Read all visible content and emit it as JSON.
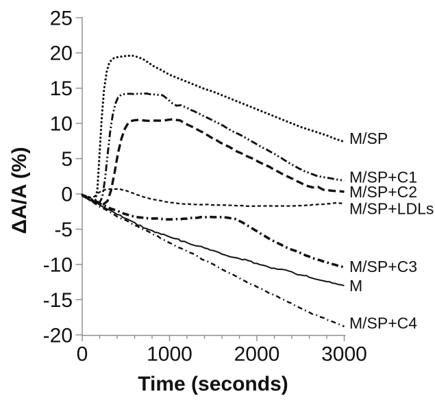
{
  "colors": {
    "line": "#111111",
    "axis": "#8c8c8c",
    "text": "#111111",
    "background": "#ffffff"
  },
  "chart_data": {
    "type": "line",
    "title": "",
    "xlabel": "Time (seconds)",
    "ylabel": "ΔA/A (%)",
    "xlim": [
      0,
      3000
    ],
    "ylim": [
      -20,
      25
    ],
    "x_ticks_major": [
      0,
      1000,
      2000,
      3000
    ],
    "x_minor_step": 200,
    "y_ticks": [
      25,
      20,
      15,
      10,
      5,
      0,
      -5,
      -10,
      -15,
      -20
    ],
    "grid": false,
    "legend_position": "labels-at-line-ends-right",
    "series": [
      {
        "name": "M/SP",
        "line_style": "dotted",
        "jitter": 0,
        "label_dy": 3,
        "points": [
          [
            0,
            -0.1
          ],
          [
            40,
            -0.3
          ],
          [
            80,
            -0.6
          ],
          [
            120,
            -0.9
          ],
          [
            150,
            -1.0
          ],
          [
            175,
            0.8
          ],
          [
            200,
            6.0
          ],
          [
            225,
            11.0
          ],
          [
            250,
            14.8
          ],
          [
            280,
            17.3
          ],
          [
            310,
            18.6
          ],
          [
            350,
            19.2
          ],
          [
            400,
            19.4
          ],
          [
            460,
            19.5
          ],
          [
            520,
            19.6
          ],
          [
            580,
            19.6
          ],
          [
            640,
            19.4
          ],
          [
            700,
            19.1
          ],
          [
            760,
            18.6
          ],
          [
            820,
            18.1
          ],
          [
            900,
            17.6
          ],
          [
            1000,
            16.9
          ],
          [
            1100,
            16.4
          ],
          [
            1200,
            15.9
          ],
          [
            1300,
            15.4
          ],
          [
            1400,
            14.9
          ],
          [
            1500,
            14.5
          ],
          [
            1600,
            14.0
          ],
          [
            1700,
            13.5
          ],
          [
            1800,
            13.0
          ],
          [
            1900,
            12.5
          ],
          [
            2000,
            12.0
          ],
          [
            2100,
            11.5
          ],
          [
            2200,
            11.0
          ],
          [
            2300,
            10.5
          ],
          [
            2400,
            10.0
          ],
          [
            2500,
            9.5
          ],
          [
            2600,
            9.1
          ],
          [
            2700,
            8.7
          ],
          [
            2800,
            8.3
          ],
          [
            2900,
            7.8
          ],
          [
            3000,
            7.4
          ]
        ]
      },
      {
        "name": "M/SP+C1",
        "line_style": "dash-dot-dot",
        "jitter": 0.5,
        "label_dy": 3,
        "points": [
          [
            0,
            -0.1
          ],
          [
            50,
            -0.4
          ],
          [
            100,
            -0.7
          ],
          [
            150,
            -1.0
          ],
          [
            200,
            -1.2
          ],
          [
            230,
            -0.5
          ],
          [
            260,
            2.0
          ],
          [
            290,
            5.5
          ],
          [
            320,
            8.8
          ],
          [
            350,
            11.2
          ],
          [
            380,
            12.8
          ],
          [
            410,
            13.7
          ],
          [
            450,
            14.1
          ],
          [
            500,
            14.2
          ],
          [
            560,
            14.2
          ],
          [
            620,
            14.2
          ],
          [
            680,
            14.2
          ],
          [
            740,
            14.2
          ],
          [
            800,
            14.1
          ],
          [
            860,
            14.1
          ],
          [
            920,
            14.0
          ],
          [
            980,
            13.4
          ],
          [
            1030,
            12.9
          ],
          [
            1080,
            12.5
          ],
          [
            1130,
            12.6
          ],
          [
            1180,
            12.3
          ],
          [
            1250,
            11.9
          ],
          [
            1350,
            11.3
          ],
          [
            1450,
            10.7
          ],
          [
            1550,
            10.1
          ],
          [
            1650,
            9.4
          ],
          [
            1750,
            8.7
          ],
          [
            1850,
            8.1
          ],
          [
            1950,
            7.4
          ],
          [
            2050,
            6.7
          ],
          [
            2150,
            6.0
          ],
          [
            2250,
            5.3
          ],
          [
            2350,
            4.5
          ],
          [
            2450,
            3.8
          ],
          [
            2550,
            3.2
          ],
          [
            2650,
            2.7
          ],
          [
            2750,
            2.4
          ],
          [
            2850,
            2.2
          ],
          [
            2925,
            2.0
          ],
          [
            3000,
            1.9
          ]
        ]
      },
      {
        "name": "M/SP+C2",
        "line_style": "dashed",
        "jitter": 0.4,
        "label_dy": 8,
        "points": [
          [
            0,
            -0.2
          ],
          [
            60,
            -0.6
          ],
          [
            120,
            -1.0
          ],
          [
            180,
            -1.3
          ],
          [
            240,
            -1.5
          ],
          [
            290,
            -1.0
          ],
          [
            330,
            0.5
          ],
          [
            370,
            3.0
          ],
          [
            410,
            5.8
          ],
          [
            450,
            7.9
          ],
          [
            490,
            9.3
          ],
          [
            530,
            10.1
          ],
          [
            570,
            10.4
          ],
          [
            630,
            10.5
          ],
          [
            700,
            10.4
          ],
          [
            770,
            10.4
          ],
          [
            840,
            10.4
          ],
          [
            910,
            10.4
          ],
          [
            980,
            10.5
          ],
          [
            1050,
            10.6
          ],
          [
            1120,
            10.4
          ],
          [
            1180,
            10.0
          ],
          [
            1280,
            9.4
          ],
          [
            1380,
            8.7
          ],
          [
            1480,
            8.0
          ],
          [
            1580,
            7.3
          ],
          [
            1680,
            6.7
          ],
          [
            1780,
            6.0
          ],
          [
            1880,
            5.4
          ],
          [
            1980,
            4.8
          ],
          [
            2080,
            4.2
          ],
          [
            2180,
            3.6
          ],
          [
            2280,
            2.9
          ],
          [
            2380,
            2.3
          ],
          [
            2480,
            1.7
          ],
          [
            2560,
            1.2
          ],
          [
            2640,
            0.9
          ],
          [
            2700,
            1.0
          ],
          [
            2760,
            0.6
          ],
          [
            2820,
            0.5
          ],
          [
            2900,
            0.4
          ],
          [
            3000,
            0.3
          ]
        ]
      },
      {
        "name": "M/SP+LDLs",
        "line_style": "short-dash",
        "jitter": 0.5,
        "label_dy": 16,
        "points": [
          [
            0,
            -0.1
          ],
          [
            50,
            -0.3
          ],
          [
            100,
            -0.5
          ],
          [
            140,
            -0.4
          ],
          [
            180,
            0.1
          ],
          [
            230,
            0.5
          ],
          [
            290,
            0.7
          ],
          [
            350,
            0.7
          ],
          [
            420,
            0.7
          ],
          [
            490,
            0.5
          ],
          [
            560,
            0.2
          ],
          [
            630,
            -0.1
          ],
          [
            700,
            -0.4
          ],
          [
            780,
            -0.7
          ],
          [
            860,
            -0.9
          ],
          [
            950,
            -1.1
          ],
          [
            1050,
            -1.3
          ],
          [
            1150,
            -1.4
          ],
          [
            1250,
            -1.5
          ],
          [
            1400,
            -1.5
          ],
          [
            1550,
            -1.6
          ],
          [
            1700,
            -1.6
          ],
          [
            1850,
            -1.7
          ],
          [
            2000,
            -1.7
          ],
          [
            2150,
            -1.7
          ],
          [
            2300,
            -1.7
          ],
          [
            2450,
            -1.7
          ],
          [
            2600,
            -1.6
          ],
          [
            2700,
            -1.5
          ],
          [
            2800,
            -1.4
          ],
          [
            2900,
            -1.3
          ],
          [
            3000,
            -1.3
          ]
        ]
      },
      {
        "name": "M/SP+C3",
        "line_style": "thick-dash-dot",
        "jitter": 0.5,
        "label_dy": 7,
        "points": [
          [
            0,
            -0.2
          ],
          [
            80,
            -0.7
          ],
          [
            160,
            -1.1
          ],
          [
            240,
            -1.6
          ],
          [
            320,
            -2.0
          ],
          [
            400,
            -2.4
          ],
          [
            480,
            -2.8
          ],
          [
            560,
            -3.1
          ],
          [
            640,
            -3.3
          ],
          [
            720,
            -3.4
          ],
          [
            800,
            -3.5
          ],
          [
            880,
            -3.5
          ],
          [
            960,
            -3.6
          ],
          [
            1040,
            -3.6
          ],
          [
            1120,
            -3.6
          ],
          [
            1200,
            -3.5
          ],
          [
            1280,
            -3.4
          ],
          [
            1360,
            -3.3
          ],
          [
            1440,
            -3.3
          ],
          [
            1520,
            -3.3
          ],
          [
            1600,
            -3.3
          ],
          [
            1680,
            -3.4
          ],
          [
            1760,
            -3.6
          ],
          [
            1840,
            -4.1
          ],
          [
            1920,
            -4.7
          ],
          [
            2000,
            -5.3
          ],
          [
            2080,
            -5.9
          ],
          [
            2160,
            -6.5
          ],
          [
            2240,
            -7.0
          ],
          [
            2320,
            -7.5
          ],
          [
            2400,
            -7.9
          ],
          [
            2480,
            -8.3
          ],
          [
            2560,
            -8.7
          ],
          [
            2640,
            -9.1
          ],
          [
            2720,
            -9.4
          ],
          [
            2800,
            -9.7
          ],
          [
            2900,
            -10.1
          ],
          [
            3000,
            -10.4
          ]
        ]
      },
      {
        "name": "M",
        "line_style": "solid",
        "jitter": 1.6,
        "label_dy": 8,
        "points": [
          [
            0,
            -0.2
          ],
          [
            100,
            -0.9
          ],
          [
            200,
            -1.6
          ],
          [
            300,
            -2.2
          ],
          [
            400,
            -2.9
          ],
          [
            500,
            -3.5
          ],
          [
            600,
            -4.1
          ],
          [
            700,
            -4.7
          ],
          [
            800,
            -5.2
          ],
          [
            900,
            -5.7
          ],
          [
            1000,
            -6.1
          ],
          [
            1100,
            -6.5
          ],
          [
            1200,
            -6.9
          ],
          [
            1300,
            -7.3
          ],
          [
            1400,
            -7.7
          ],
          [
            1500,
            -8.1
          ],
          [
            1600,
            -8.5
          ],
          [
            1700,
            -8.9
          ],
          [
            1800,
            -9.2
          ],
          [
            1900,
            -9.5
          ],
          [
            2000,
            -9.9
          ],
          [
            2100,
            -10.2
          ],
          [
            2200,
            -10.5
          ],
          [
            2300,
            -10.8
          ],
          [
            2400,
            -11.1
          ],
          [
            2500,
            -11.5
          ],
          [
            2600,
            -11.8
          ],
          [
            2700,
            -12.1
          ],
          [
            2800,
            -12.4
          ],
          [
            2900,
            -12.7
          ],
          [
            3000,
            -13.0
          ]
        ]
      },
      {
        "name": "M/SP+C4",
        "line_style": "dash-dot",
        "jitter": 1.2,
        "label_dy": 3,
        "points": [
          [
            0,
            -0.2
          ],
          [
            100,
            -1.0
          ],
          [
            200,
            -1.8
          ],
          [
            300,
            -2.5
          ],
          [
            400,
            -3.2
          ],
          [
            500,
            -3.8
          ],
          [
            600,
            -4.4
          ],
          [
            700,
            -5.0
          ],
          [
            800,
            -5.7
          ],
          [
            900,
            -6.3
          ],
          [
            1000,
            -6.9
          ],
          [
            1100,
            -7.5
          ],
          [
            1200,
            -8.1
          ],
          [
            1300,
            -8.7
          ],
          [
            1400,
            -9.4
          ],
          [
            1500,
            -10.0
          ],
          [
            1600,
            -10.7
          ],
          [
            1700,
            -11.3
          ],
          [
            1800,
            -12.0
          ],
          [
            1900,
            -12.6
          ],
          [
            2000,
            -13.2
          ],
          [
            2100,
            -13.8
          ],
          [
            2200,
            -14.4
          ],
          [
            2300,
            -15.0
          ],
          [
            2400,
            -15.6
          ],
          [
            2500,
            -16.2
          ],
          [
            2600,
            -16.8
          ],
          [
            2700,
            -17.3
          ],
          [
            2800,
            -17.8
          ],
          [
            2900,
            -18.3
          ],
          [
            3000,
            -18.8
          ]
        ]
      }
    ]
  }
}
